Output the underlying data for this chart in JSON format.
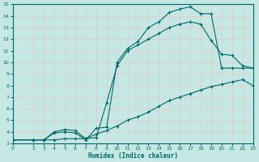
{
  "xlabel": "Humidex (Indice chaleur)",
  "bg_color": "#c5e8e5",
  "grid_color": "#e8c8c8",
  "line_color": "#006868",
  "xlim": [
    0,
    23
  ],
  "ylim": [
    3,
    15
  ],
  "xticks": [
    0,
    2,
    3,
    4,
    5,
    6,
    7,
    8,
    9,
    10,
    11,
    12,
    13,
    14,
    15,
    16,
    17,
    18,
    19,
    20,
    21,
    22,
    23
  ],
  "yticks": [
    3,
    4,
    5,
    6,
    7,
    8,
    9,
    10,
    11,
    12,
    13,
    14,
    15
  ],
  "line1_x": [
    0,
    2,
    3,
    4,
    5,
    6,
    7,
    8,
    9,
    10,
    11,
    12,
    13,
    14,
    15,
    16,
    17,
    18,
    19,
    20,
    21,
    22,
    23
  ],
  "line1_y": [
    3.3,
    3.3,
    3.3,
    3.3,
    3.4,
    3.4,
    3.4,
    3.8,
    4.1,
    4.5,
    5.0,
    5.3,
    5.7,
    6.2,
    6.7,
    7.0,
    7.3,
    7.6,
    7.9,
    8.1,
    8.3,
    8.5,
    8.0
  ],
  "line2_x": [
    0,
    2,
    3,
    4,
    5,
    6,
    7,
    8,
    9,
    10,
    11,
    12,
    13,
    14,
    15,
    16,
    17,
    18,
    19,
    20,
    21,
    22,
    23
  ],
  "line2_y": [
    3.3,
    3.3,
    3.3,
    4.0,
    4.2,
    4.1,
    3.4,
    3.5,
    6.5,
    9.7,
    11.0,
    11.5,
    12.0,
    12.5,
    13.0,
    13.3,
    13.5,
    13.3,
    11.9,
    10.7,
    10.6,
    9.7,
    9.5
  ],
  "line3_x": [
    0,
    2,
    3,
    4,
    5,
    6,
    7,
    8,
    9,
    10,
    11,
    12,
    13,
    14,
    15,
    16,
    17,
    18,
    19,
    20,
    21,
    22,
    23
  ],
  "line3_y": [
    3.3,
    3.3,
    3.3,
    3.9,
    4.0,
    3.9,
    3.3,
    4.3,
    4.4,
    10.0,
    11.2,
    11.8,
    13.0,
    13.5,
    14.3,
    14.6,
    14.8,
    14.2,
    14.2,
    9.5,
    9.5,
    9.5,
    9.5
  ]
}
